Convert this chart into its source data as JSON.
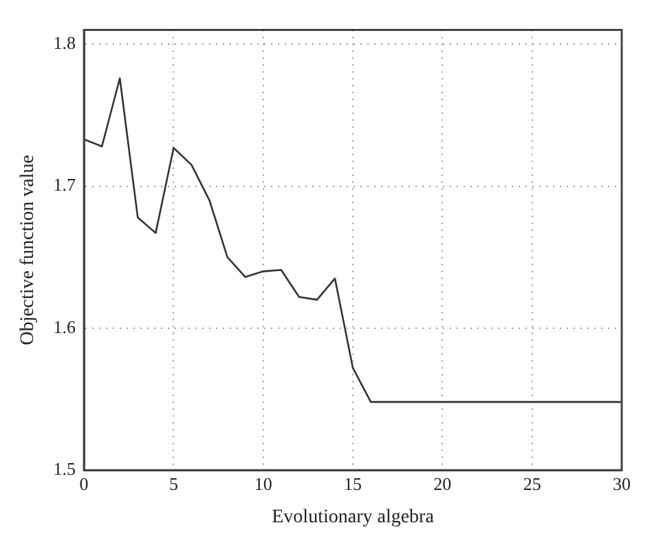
{
  "chart_data": {
    "type": "line",
    "xlabel": "Evolutionary algebra",
    "ylabel": "Objective function value",
    "x": [
      0,
      1,
      2,
      3,
      4,
      5,
      6,
      7,
      8,
      9,
      10,
      11,
      12,
      13,
      14,
      15,
      16,
      30
    ],
    "series": [
      {
        "color": "#333333",
        "values": [
          1.733,
          1.728,
          1.776,
          1.678,
          1.667,
          1.727,
          1.715,
          1.69,
          1.65,
          1.636,
          1.64,
          1.641,
          1.622,
          1.62,
          1.635,
          1.572,
          1.548,
          1.548
        ]
      }
    ],
    "xlim": [
      0,
      30
    ],
    "xticks": [
      0,
      5,
      10,
      15,
      20,
      25,
      30
    ],
    "ylim": [
      1.5,
      1.81
    ],
    "yticks": [
      1.5,
      1.6,
      1.7,
      1.8
    ],
    "grid": true,
    "legend": false,
    "marker": "none",
    "line_style": "solid"
  }
}
